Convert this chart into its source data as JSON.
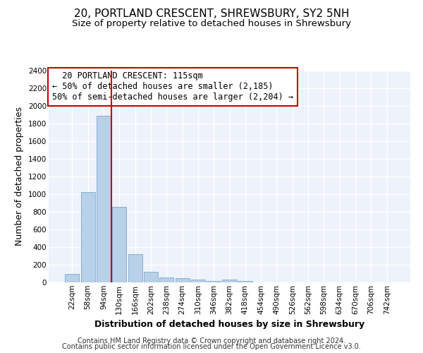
{
  "title": "20, PORTLAND CRESCENT, SHREWSBURY, SY2 5NH",
  "subtitle": "Size of property relative to detached houses in Shrewsbury",
  "xlabel": "Distribution of detached houses by size in Shrewsbury",
  "ylabel": "Number of detached properties",
  "bar_color": "#b8d0e8",
  "bar_edge_color": "#7aaace",
  "background_color": "#eef2fb",
  "grid_color": "white",
  "categories": [
    "22sqm",
    "58sqm",
    "94sqm",
    "130sqm",
    "166sqm",
    "202sqm",
    "238sqm",
    "274sqm",
    "310sqm",
    "346sqm",
    "382sqm",
    "418sqm",
    "454sqm",
    "490sqm",
    "526sqm",
    "562sqm",
    "598sqm",
    "634sqm",
    "670sqm",
    "706sqm",
    "742sqm"
  ],
  "values": [
    95,
    1025,
    1890,
    860,
    320,
    120,
    60,
    50,
    30,
    20,
    30,
    20,
    0,
    0,
    0,
    0,
    0,
    0,
    0,
    0,
    0
  ],
  "ylim": [
    0,
    2400
  ],
  "yticks": [
    0,
    200,
    400,
    600,
    800,
    1000,
    1200,
    1400,
    1600,
    1800,
    2000,
    2200,
    2400
  ],
  "vline_color": "#cc0000",
  "annotation_text": "  20 PORTLAND CRESCENT: 115sqm  \n← 50% of detached houses are smaller (2,185)\n50% of semi-detached houses are larger (2,204) →",
  "annotation_box_color": "#cc0000",
  "footer_line1": "Contains HM Land Registry data © Crown copyright and database right 2024.",
  "footer_line2": "Contains public sector information licensed under the Open Government Licence v3.0.",
  "title_fontsize": 11,
  "subtitle_fontsize": 9.5,
  "xlabel_fontsize": 9,
  "ylabel_fontsize": 9,
  "tick_fontsize": 7.5,
  "annotation_fontsize": 8.5,
  "footer_fontsize": 7
}
